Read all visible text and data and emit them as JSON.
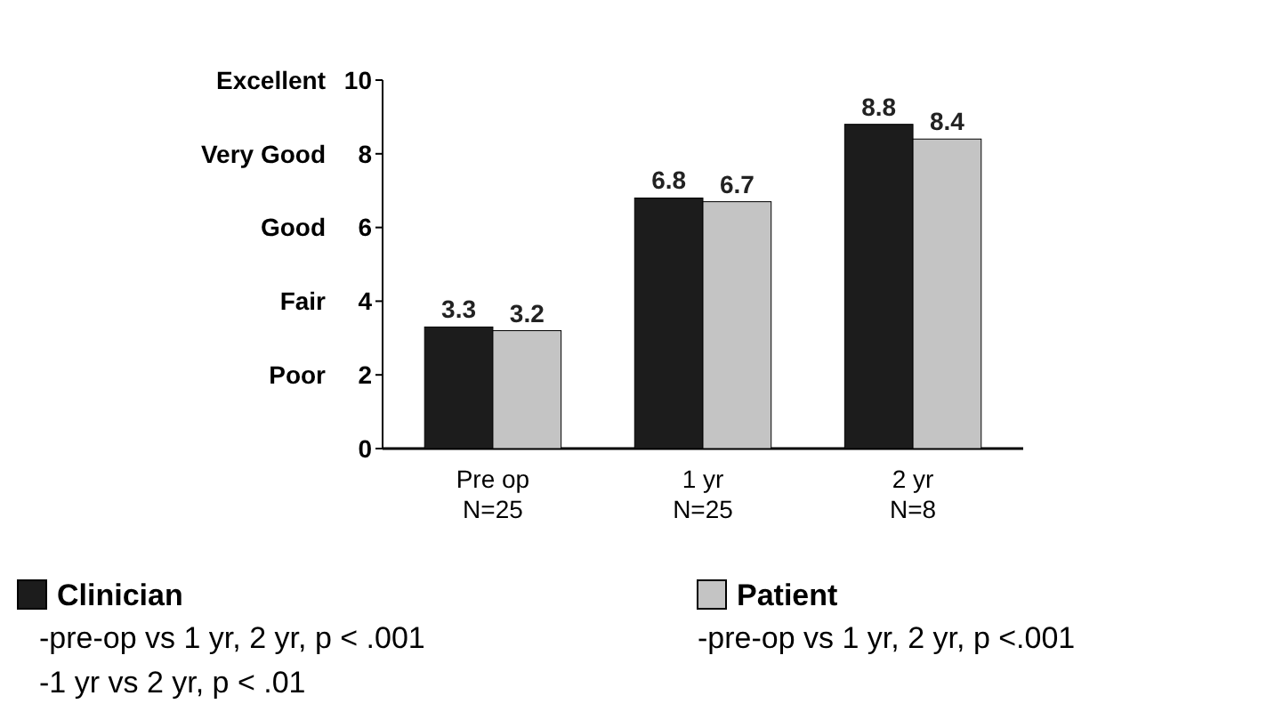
{
  "chart_data": {
    "type": "bar",
    "categories": [
      "Pre op\nN=25",
      "1 yr\nN=25",
      "2 yr\nN=8"
    ],
    "series": [
      {
        "name": "Clinician",
        "color": "#1c1c1c",
        "values": [
          3.3,
          6.8,
          8.8
        ]
      },
      {
        "name": "Patient",
        "color": "#c4c4c4",
        "values": [
          3.2,
          6.7,
          8.4
        ]
      }
    ],
    "ylim": [
      0,
      10
    ],
    "yticks": [
      0,
      2,
      4,
      6,
      8,
      10
    ],
    "data_labels": true,
    "legend": "bottom",
    "grid": false,
    "annotations": [
      "-pre-op vs 1 yr, 2 yr, p < .001",
      "-pre-op vs 1 yr, 2 yr, p <.001",
      "-1 yr vs 2 yr, p < .01",
      "Excellent",
      "Very Good",
      "Good",
      "Fair",
      "Poor"
    ]
  }
}
